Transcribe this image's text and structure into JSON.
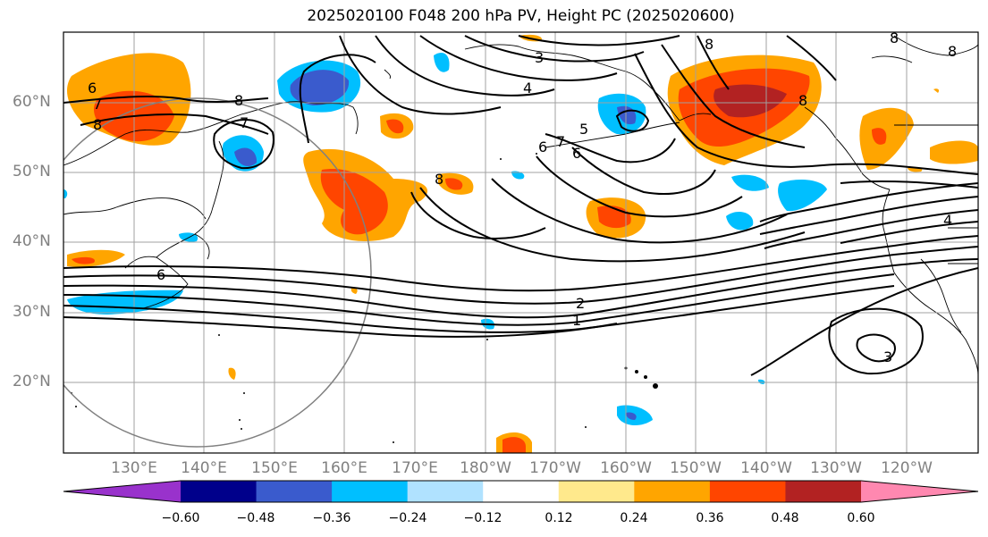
{
  "title": "2025020100 F048 200 hPa PV, Height PC (2025020600)",
  "lat_labels": [
    "60°N",
    "50°N",
    "40°N",
    "30°N",
    "20°N"
  ],
  "lon_labels": [
    "130°E",
    "140°E",
    "150°E",
    "160°E",
    "170°E",
    "180°W",
    "170°W",
    "160°W",
    "150°W",
    "140°W",
    "130°W",
    "120°W"
  ],
  "contour_labels": [
    "6",
    "7",
    "8",
    "8",
    "7",
    "6",
    "6",
    "7",
    "6",
    "5",
    "4",
    "3",
    "8",
    "8",
    "8",
    "2",
    "1",
    "4",
    "3",
    "8",
    "8"
  ],
  "colorbar": {
    "ticks": [
      "−0.60",
      "−0.48",
      "−0.36",
      "−0.24",
      "−0.12",
      "0.12",
      "0.24",
      "0.36",
      "0.48",
      "0.60"
    ],
    "colors": [
      "#9932cc",
      "#00008b",
      "#3a5bcd",
      "#00bfff",
      "#b0e2ff",
      "#ffffff",
      "#ffe98c",
      "#ffa500",
      "#ff4500",
      "#b22222",
      "#ff88b0"
    ]
  }
}
